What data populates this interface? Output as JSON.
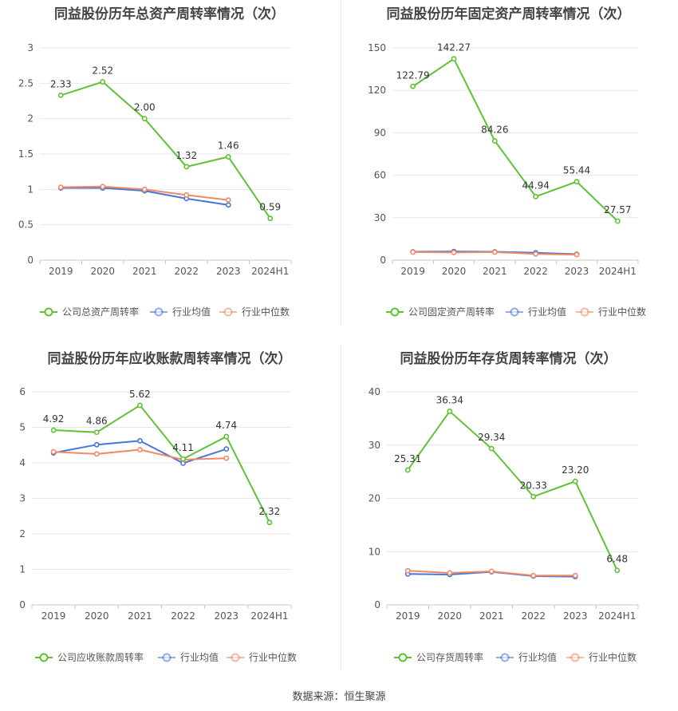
{
  "colors": {
    "company": "#5fc234",
    "avg": "#4677d8",
    "median": "#f08a66",
    "grid": "#e6e6ef",
    "axis": "#c8c8c8",
    "text": "#555555"
  },
  "footer": "数据来源：恒生聚源",
  "chart_data": [
    {
      "type": "line",
      "title": "同益股份历年总资产周转率情况（次）",
      "categories": [
        "2019",
        "2020",
        "2021",
        "2022",
        "2023",
        "2024H1"
      ],
      "ylim": [
        0,
        3
      ],
      "yticks": [
        "0",
        "0.5",
        "1",
        "1.5",
        "2",
        "2.5",
        "3"
      ],
      "grid": true,
      "legend_position": "bottom",
      "series": [
        {
          "name": "公司总资产周转率",
          "values": [
            2.33,
            2.52,
            2.0,
            1.32,
            1.46,
            0.59
          ],
          "labels": [
            "2.33",
            "2.52",
            "2.00",
            "1.32",
            "1.46",
            "0.59"
          ]
        },
        {
          "name": "行业均值",
          "values": [
            1.02,
            1.02,
            0.98,
            0.87,
            0.78,
            null
          ]
        },
        {
          "name": "行业中位数",
          "values": [
            1.03,
            1.04,
            1.0,
            0.92,
            0.85,
            null
          ]
        }
      ]
    },
    {
      "type": "line",
      "title": "同益股份历年固定资产周转率情况（次）",
      "categories": [
        "2019",
        "2020",
        "2021",
        "2022",
        "2023",
        "2024H1"
      ],
      "ylim": [
        0,
        150
      ],
      "yticks": [
        "0",
        "30",
        "60",
        "90",
        "120",
        "150"
      ],
      "grid": true,
      "legend_position": "bottom",
      "series": [
        {
          "name": "公司固定资产周转率",
          "values": [
            122.79,
            142.27,
            84.26,
            44.94,
            55.44,
            27.57
          ],
          "labels": [
            "122.79",
            "142.27",
            "84.26",
            "44.94",
            "55.44",
            "27.57"
          ]
        },
        {
          "name": "行业均值",
          "values": [
            5.9,
            6.1,
            5.9,
            5.2,
            4.2,
            null
          ]
        },
        {
          "name": "行业中位数",
          "values": [
            5.7,
            5.4,
            5.7,
            4.4,
            3.9,
            null
          ]
        }
      ]
    },
    {
      "type": "line",
      "title": "同益股份历年应收账款周转率情况（次）",
      "categories": [
        "2019",
        "2020",
        "2021",
        "2022",
        "2023",
        "2024H1"
      ],
      "ylim": [
        0,
        6
      ],
      "yticks": [
        "0",
        "1",
        "2",
        "3",
        "4",
        "5",
        "6"
      ],
      "grid": true,
      "legend_position": "bottom",
      "series": [
        {
          "name": "公司应收账款周转率",
          "values": [
            4.92,
            4.86,
            5.62,
            4.11,
            4.74,
            2.32
          ],
          "labels": [
            "4.92",
            "4.86",
            "5.62",
            "4.11",
            "4.74",
            "2.32"
          ]
        },
        {
          "name": "行业均值",
          "values": [
            4.28,
            4.51,
            4.62,
            3.99,
            4.39,
            null
          ]
        },
        {
          "name": "行业中位数",
          "values": [
            4.31,
            4.25,
            4.37,
            4.09,
            4.13,
            null
          ]
        }
      ]
    },
    {
      "type": "line",
      "title": "同益股份历年存货周转率情况（次）",
      "categories": [
        "2019",
        "2020",
        "2021",
        "2022",
        "2023",
        "2024H1"
      ],
      "ylim": [
        0,
        40
      ],
      "yticks": [
        "0",
        "10",
        "20",
        "30",
        "40"
      ],
      "grid": true,
      "legend_position": "bottom",
      "series": [
        {
          "name": "公司存货周转率",
          "values": [
            25.31,
            36.34,
            29.34,
            20.33,
            23.2,
            6.48
          ],
          "labels": [
            "25.31",
            "36.34",
            "29.34",
            "20.33",
            "23.20",
            "6.48"
          ]
        },
        {
          "name": "行业均值",
          "values": [
            5.8,
            5.7,
            6.2,
            5.4,
            5.3,
            null
          ]
        },
        {
          "name": "行业中位数",
          "values": [
            6.4,
            6.0,
            6.3,
            5.5,
            5.5,
            null
          ]
        }
      ]
    }
  ]
}
